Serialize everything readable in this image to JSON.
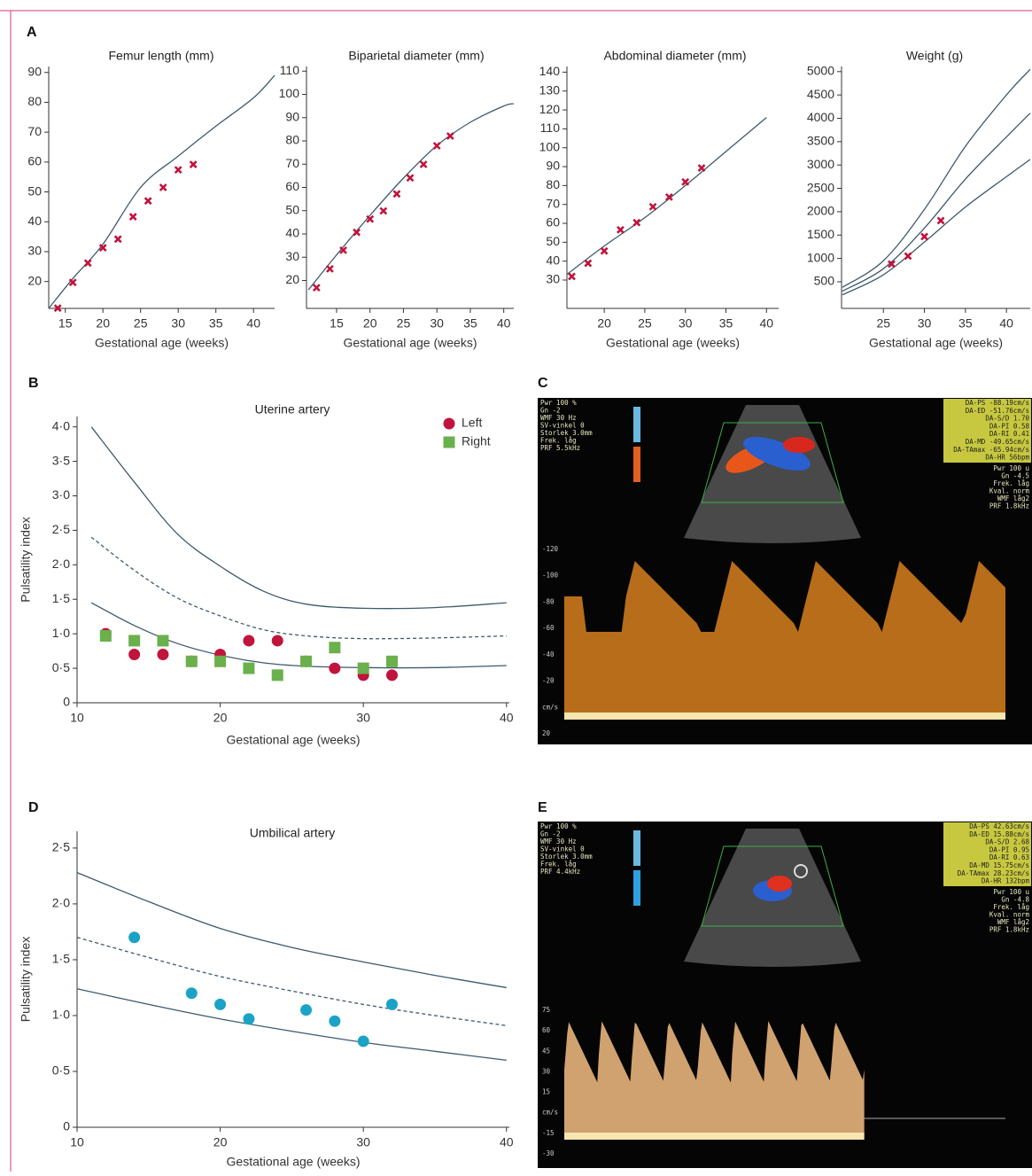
{
  "panel_labels": [
    "A",
    "B",
    "C",
    "D",
    "E"
  ],
  "chart_data": [
    {
      "type": "scatter",
      "title": "Femur length (mm)",
      "x_label": "Gestational age (weeks)",
      "xlim": [
        12.8,
        42.8
      ],
      "xticks": [
        15,
        20,
        25,
        30,
        35,
        40
      ],
      "ylim": [
        11,
        92
      ],
      "yticks": [
        20,
        30,
        40,
        50,
        60,
        70,
        80,
        90
      ],
      "series": [
        {
          "style": "line",
          "color": "#3d5a6c",
          "x": [
            12.8,
            16,
            20,
            25,
            30,
            35,
            40,
            42.8
          ],
          "values": [
            11,
            21,
            32.5,
            51.5,
            62,
            72,
            81.5,
            89
          ]
        },
        {
          "style": "cross",
          "color": "#c0143c",
          "x": [
            14,
            16,
            18,
            20,
            22,
            24,
            26,
            28,
            30,
            32
          ],
          "values": [
            11.1,
            19.7,
            26.2,
            31.3,
            34.2,
            41.7,
            47,
            51.5,
            57.4,
            59.2
          ]
        }
      ]
    },
    {
      "type": "scatter",
      "title": "Biparietal diameter (mm)",
      "x_label": "Gestational age (weeks)",
      "xlim": [
        10.5,
        41.5
      ],
      "xticks": [
        15,
        20,
        25,
        30,
        35,
        40
      ],
      "ylim": [
        8,
        112
      ],
      "yticks": [
        20,
        30,
        40,
        50,
        60,
        70,
        80,
        90,
        100,
        110
      ],
      "series": [
        {
          "style": "line",
          "color": "#3d5a6c",
          "x": [
            10.8,
            15,
            20,
            25,
            30,
            35,
            40,
            41.5
          ],
          "values": [
            16,
            31,
            48,
            64,
            78,
            88,
            95,
            96
          ]
        },
        {
          "style": "cross",
          "color": "#c0143c",
          "x": [
            12,
            14,
            16,
            18,
            20,
            22,
            24,
            26,
            28,
            30,
            32
          ],
          "values": [
            16.9,
            25,
            33,
            40.7,
            46.4,
            49.9,
            57.2,
            64.1,
            69.9,
            77.9,
            82.1
          ]
        }
      ]
    },
    {
      "type": "scatter",
      "title": "Abdominal diameter (mm)",
      "x_label": "Gestational age (weeks)",
      "xlim": [
        15.4,
        41.5
      ],
      "xticks": [
        20,
        25,
        30,
        35,
        40
      ],
      "ylim": [
        15,
        143
      ],
      "yticks": [
        30,
        40,
        50,
        60,
        70,
        80,
        90,
        100,
        110,
        120,
        130,
        140
      ],
      "series": [
        {
          "style": "line",
          "color": "#3d5a6c",
          "x": [
            15.4,
            20,
            25,
            30,
            35,
            40
          ],
          "values": [
            33,
            48,
            63,
            80,
            98,
            116
          ]
        },
        {
          "style": "cross",
          "color": "#c0143c",
          "x": [
            16,
            18,
            20,
            22,
            24,
            26,
            28,
            30,
            32
          ],
          "values": [
            31.9,
            38.9,
            45.4,
            56.6,
            60.4,
            68.8,
            73.9,
            81.9,
            89.3
          ]
        }
      ]
    },
    {
      "type": "scatter",
      "title": "Weight (g)",
      "x_label": "Gestational age (weeks)",
      "xlim": [
        19.9,
        42.9
      ],
      "xticks": [
        25,
        30,
        35,
        40
      ],
      "ylim": [
        -70,
        5110
      ],
      "yticks": [
        500,
        1000,
        1500,
        2000,
        2500,
        3000,
        3500,
        4000,
        4500,
        5000
      ],
      "series": [
        {
          "style": "line",
          "color": "#3d5a6c",
          "x": [
            20,
            25,
            30,
            35,
            40,
            42.9
          ],
          "values": [
            380,
            950,
            2050,
            3400,
            4500,
            5050
          ]
        },
        {
          "style": "line",
          "color": "#3d5a6c",
          "x": [
            20,
            25,
            30,
            35,
            40,
            42.9
          ],
          "values": [
            300,
            780,
            1650,
            2700,
            3600,
            4110
          ]
        },
        {
          "style": "line",
          "color": "#3d5a6c",
          "x": [
            20,
            25,
            30,
            35,
            40,
            42.9
          ],
          "values": [
            220,
            650,
            1350,
            2100,
            2750,
            3120
          ]
        },
        {
          "style": "cross",
          "color": "#c0143c",
          "x": [
            26,
            28,
            30,
            32
          ],
          "values": [
            880,
            1050,
            1468,
            1809
          ]
        }
      ]
    },
    {
      "type": "scatter",
      "title": "Uterine artery",
      "x_label": "Gestational age (weeks)",
      "y_label": "Pulsatility index",
      "legend": "upper right",
      "xlim": [
        10,
        40.2
      ],
      "xticks": [
        10,
        20,
        30,
        40
      ],
      "ylim": [
        0,
        4.15
      ],
      "yticks": [
        0,
        {
          "value": 0.5,
          "label": "0·5"
        },
        {
          "value": 1,
          "label": "1·0"
        },
        {
          "value": 1.5,
          "label": "1·5"
        },
        {
          "value": 2,
          "label": "2·0"
        },
        {
          "value": 2.5,
          "label": "2·5"
        },
        {
          "value": 3,
          "label": "3·0"
        },
        {
          "value": 3.5,
          "label": "3·5"
        },
        {
          "value": 4,
          "label": "4·0"
        }
      ],
      "series": [
        {
          "style": "line",
          "color": "#3d5a6c",
          "x": [
            11,
            14,
            17,
            20,
            23,
            26,
            30,
            35,
            40
          ],
          "values": [
            4.0,
            3.2,
            2.45,
            1.98,
            1.62,
            1.43,
            1.37,
            1.38,
            1.45
          ]
        },
        {
          "style": "dashed",
          "color": "#3d5a6c",
          "x": [
            11,
            14,
            17,
            20,
            23,
            26,
            30,
            35,
            40
          ],
          "values": [
            2.4,
            1.92,
            1.52,
            1.26,
            1.06,
            0.97,
            0.93,
            0.94,
            0.97
          ]
        },
        {
          "style": "line",
          "color": "#3d5a6c",
          "x": [
            11,
            14,
            17,
            20,
            23,
            26,
            30,
            35,
            40
          ],
          "values": [
            1.45,
            1.12,
            0.86,
            0.69,
            0.58,
            0.53,
            0.51,
            0.51,
            0.54
          ]
        },
        {
          "name": "Left",
          "style": "circle",
          "color": "#c0143c",
          "x": [
            12,
            14,
            16,
            18,
            20,
            22,
            24,
            26,
            28,
            30,
            32
          ],
          "values": [
            1.0,
            0.7,
            0.7,
            0.6,
            0.7,
            0.9,
            0.9,
            0.6,
            0.5,
            0.4,
            0.4
          ]
        },
        {
          "name": "Right",
          "style": "square",
          "color": "#6ab04c",
          "x": [
            12,
            14,
            16,
            18,
            20,
            22,
            24,
            26,
            28,
            30,
            32
          ],
          "values": [
            0.97,
            0.9,
            0.9,
            0.6,
            0.6,
            0.5,
            0.4,
            0.6,
            0.8,
            0.5,
            0.6
          ]
        }
      ]
    },
    {
      "type": "scatter",
      "title": "Umbilical artery",
      "x_label": "Gestational age (weeks)",
      "y_label": "Pulsatility index",
      "xlim": [
        10,
        40.2
      ],
      "xticks": [
        10,
        20,
        30,
        40
      ],
      "ylim": [
        0,
        2.65
      ],
      "yticks": [
        0,
        {
          "value": 0.5,
          "label": "0·5"
        },
        {
          "value": 1,
          "label": "1·0"
        },
        {
          "value": 1.5,
          "label": "1·5"
        },
        {
          "value": 2,
          "label": "2·0"
        },
        {
          "value": 2.5,
          "label": "2·5"
        }
      ],
      "series": [
        {
          "style": "line",
          "color": "#3d5a6c",
          "x": [
            10,
            15,
            20,
            25,
            30,
            35,
            40
          ],
          "values": [
            2.28,
            2.02,
            1.78,
            1.61,
            1.48,
            1.36,
            1.25
          ]
        },
        {
          "style": "dashed",
          "color": "#3d5a6c",
          "x": [
            10,
            15,
            20,
            25,
            30,
            35,
            40
          ],
          "values": [
            1.7,
            1.52,
            1.35,
            1.22,
            1.1,
            1.0,
            0.91
          ]
        },
        {
          "style": "line",
          "color": "#3d5a6c",
          "x": [
            10,
            15,
            20,
            25,
            30,
            35,
            40
          ],
          "values": [
            1.24,
            1.1,
            0.97,
            0.86,
            0.76,
            0.68,
            0.6
          ]
        },
        {
          "style": "circle",
          "color": "#1ba3c6",
          "x": [
            14,
            18,
            20,
            22,
            26,
            28,
            30,
            32
          ],
          "values": [
            1.7,
            1.2,
            1.1,
            0.97,
            1.05,
            0.95,
            0.77,
            1.1
          ]
        }
      ]
    }
  ],
  "images": [
    {
      "settings": [
        "Pwr 100 %",
        "Gn -2",
        "WMF 30 Hz",
        "SV-vinkel 0",
        "Storlek 3.0mm",
        "Frek. låg",
        "PRF 5.5kHz"
      ],
      "readouts": [
        "DA-PS -88.19cm/s",
        "DA-ED -51.76cm/s",
        "DA-S/D 1.70",
        "DA-PI 0.58",
        "DA-RI 0.41",
        "DA-MD -49.65cm/s",
        "DA-TAmax -65.94cm/s",
        "DA-HR 56bpm"
      ],
      "settings2": [
        "Pwr 100 u",
        "Gn -4.5",
        "Frek. låg",
        "Kval. norm",
        "WMF låg2",
        "PRF 1.8kHz"
      ],
      "scale": [
        "-120",
        "-100",
        "-80",
        "-60",
        "-40",
        "-20",
        "cm/s",
        "20"
      ]
    },
    {
      "settings": [
        "Pwr 100 %",
        "Gn -2",
        "WMF 30 Hz",
        "SV-vinkel 0",
        "Storlek 3.0mm",
        "Frek. låg",
        "PRF 4.4kHz"
      ],
      "readouts": [
        "DA-PS 42.63cm/s",
        "DA-ED 15.88cm/s",
        "DA-S/D 2.68",
        "DA-PI 0.95",
        "DA-RI 0.63",
        "DA-MD 15.75cm/s",
        "DA-TAmax 28.23cm/s",
        "DA-HR 132bpm"
      ],
      "settings2": [
        "Pwr 100 u",
        "Gn -4.8",
        "Frek. låg",
        "Kval. norm",
        "WMF låg2",
        "PRF 1.8kHz"
      ],
      "scale": [
        "75",
        "60",
        "45",
        "30",
        "15",
        "cm/s",
        "-15",
        "-30"
      ]
    }
  ]
}
